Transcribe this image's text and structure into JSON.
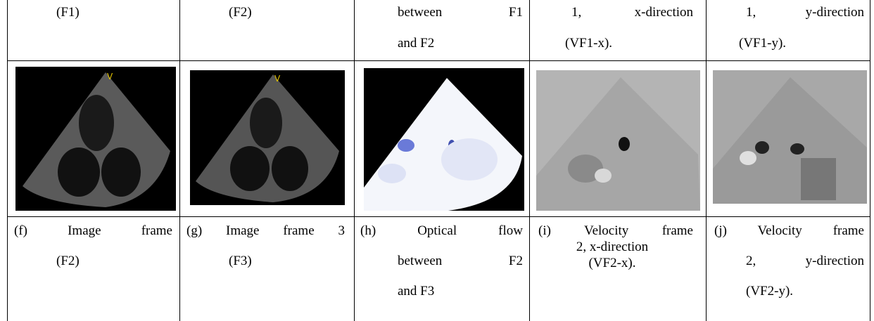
{
  "table": {
    "top_row": [
      [
        "(F1)"
      ],
      [
        "(F2)"
      ],
      [
        "between F1",
        "and F2"
      ],
      [
        "1, x-direction",
        "(VF1-x)."
      ],
      [
        "1, y-direction",
        "(VF1-y)."
      ]
    ],
    "bottom_row": [
      [
        "(f) Image frame",
        "(F2)"
      ],
      [
        "(g) Image frame 3",
        "(F3)"
      ],
      [
        "(h) Optical flow",
        "between F2",
        "and F3"
      ],
      [
        "(i) Velocity frame",
        "2, x-direction",
        "(VF2-x)."
      ],
      [
        "(j) Velocity frame",
        "2, y-direction",
        "(VF2-y)."
      ]
    ]
  }
}
